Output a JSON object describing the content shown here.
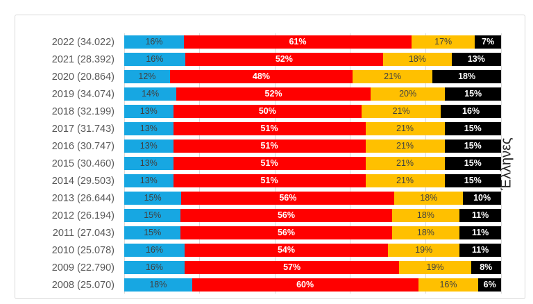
{
  "chart_data": {
    "type": "bar",
    "stacked": true,
    "orientation": "horizontal",
    "title": "",
    "right_axis_label": "Έλληνες",
    "value_suffix": "%",
    "xlim": [
      0,
      100
    ],
    "gridline_ticks": [
      0,
      20,
      40,
      60,
      80,
      100
    ],
    "grid": "vertical-light-gray",
    "legend": "none",
    "categories": [
      "2022 (34.022)",
      "2021 (28.392)",
      "2020 (20.864)",
      "2019 (34.074)",
      "2018 (32.199)",
      "2017 (31.743)",
      "2016 (30.747)",
      "2015 (30.460)",
      "2014 (29.503)",
      "2013 (26.644)",
      "2012 (26.194)",
      "2011 (27.043)",
      "2010 (25.078)",
      "2009 (22.790)",
      "2008 (25.070)"
    ],
    "series": [
      {
        "name": "segment-1-blue",
        "color": "#17A7E2",
        "label_color": "#404040",
        "label_bold": false,
        "values": [
          16,
          16,
          12,
          14,
          13,
          13,
          13,
          13,
          13,
          15,
          15,
          15,
          16,
          16,
          18
        ]
      },
      {
        "name": "segment-2-red",
        "color": "#FF0000",
        "label_color": "#FFFFFF",
        "label_bold": true,
        "values": [
          61,
          52,
          48,
          52,
          50,
          51,
          51,
          51,
          51,
          56,
          56,
          56,
          54,
          57,
          60
        ]
      },
      {
        "name": "segment-3-gold",
        "color": "#FFC000",
        "label_color": "#404040",
        "label_bold": false,
        "values": [
          17,
          18,
          21,
          20,
          21,
          21,
          21,
          21,
          21,
          18,
          18,
          18,
          19,
          19,
          16
        ]
      },
      {
        "name": "segment-4-black",
        "color": "#000000",
        "label_color": "#FFFFFF",
        "label_bold": true,
        "values": [
          7,
          13,
          18,
          15,
          16,
          15,
          15,
          15,
          15,
          10,
          11,
          11,
          11,
          8,
          6
        ]
      }
    ],
    "frame_border_color": "#D9D9D9",
    "gridline_color": "#D9D9D9",
    "category_label_color": "#595959"
  }
}
